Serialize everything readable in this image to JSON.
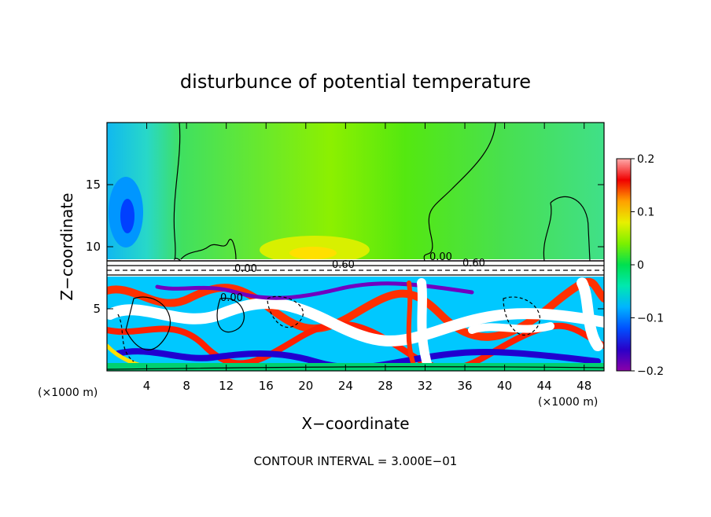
{
  "chart_data": {
    "type": "heatmap",
    "title": "disturbunce of potential temperature",
    "xlabel": "X−coordinate",
    "ylabel": "Z−coordinate",
    "x_unit": "(×1000 m)",
    "x_unit_right": "(×1000 m)",
    "xlim": [
      0,
      50
    ],
    "ylim": [
      0,
      20
    ],
    "x_ticks": [
      4,
      8,
      12,
      16,
      20,
      24,
      28,
      32,
      36,
      40,
      44,
      48
    ],
    "y_ticks": [
      5,
      10,
      15
    ],
    "x_tick_labels": [
      "4",
      "8",
      "12",
      "16",
      "20",
      "24",
      "28",
      "32",
      "36",
      "40",
      "44",
      "48"
    ],
    "y_tick_labels": [
      "5",
      "10",
      "15"
    ],
    "colorbar": {
      "min": -0.2,
      "max": 0.2,
      "ticks": [
        0.2,
        0.1,
        0,
        -0.1,
        -0.2
      ],
      "tick_labels": [
        "0.2",
        "0.1",
        "0",
        "−0.1",
        "−0.2"
      ],
      "colors": [
        "#8b00a8",
        "#2a00c8",
        "#0030ff",
        "#0078ff",
        "#00b4ff",
        "#00d8ff",
        "#00e8c0",
        "#00e890",
        "#00e050",
        "#3cf000",
        "#7cf000",
        "#b4f000",
        "#e8f000",
        "#ffd200",
        "#ffa000",
        "#ff6a00",
        "#ff2a00",
        "#f00000",
        "#ff6e6e",
        "#ffaaaa"
      ]
    },
    "contour_labels": [
      "0.00",
      "0.00",
      "0.00",
      "0.60",
      "0.60"
    ],
    "footer": "CONTOUR INTERVAL = 3.000E−01"
  }
}
